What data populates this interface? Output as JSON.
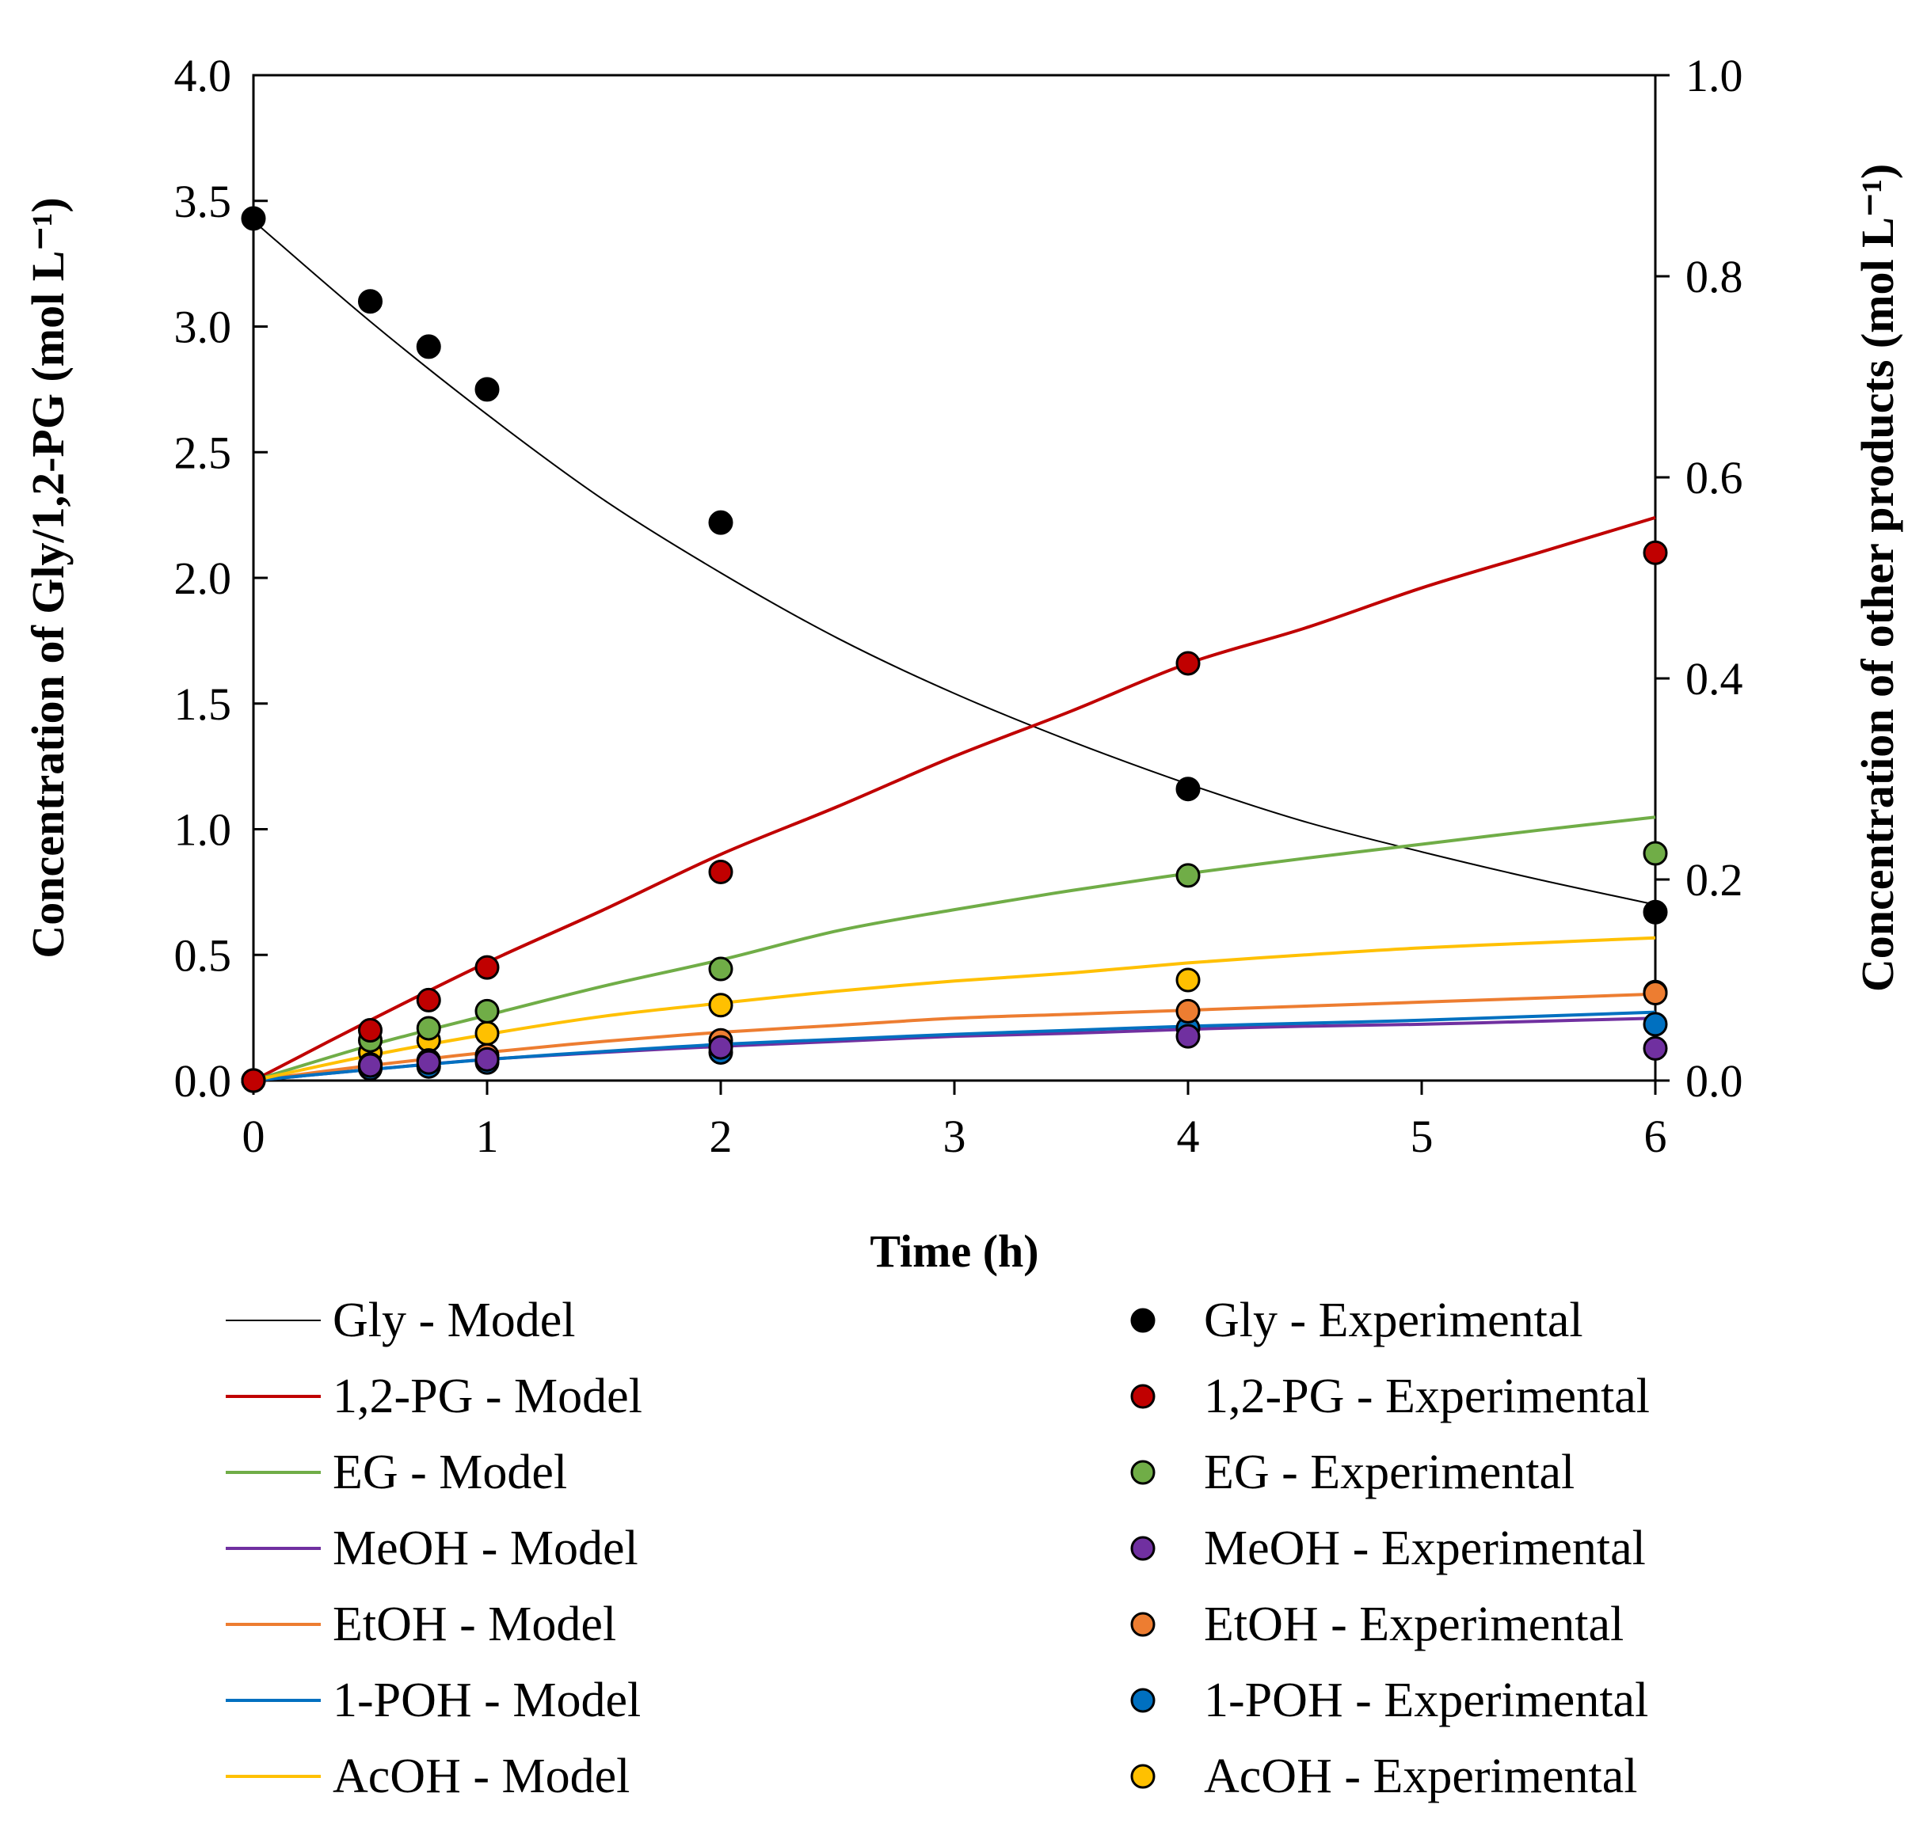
{
  "chart_data": {
    "type": "scatter",
    "title": "",
    "xlabel": "Time (h)",
    "ylabel_left": "Concentration of Gly/1,2-PG (mol L⁻¹)",
    "ylabel_right": "Concentration of other products (mol L⁻¹)",
    "xlim": [
      0,
      6
    ],
    "ylim_left": [
      0,
      4.0
    ],
    "ylim_right": [
      0,
      1.0
    ],
    "x_ticks": [
      "0",
      "1",
      "2",
      "3",
      "4",
      "5",
      "6"
    ],
    "y_left_ticks": [
      "0.0",
      "0.5",
      "1.0",
      "1.5",
      "2.0",
      "2.5",
      "3.0",
      "3.5",
      "4.0"
    ],
    "y_right_ticks": [
      "0.0",
      "0.2",
      "0.4",
      "0.6",
      "0.8",
      "1.0"
    ],
    "grid": false,
    "legend_position": "bottom",
    "series": [
      {
        "name": "Gly",
        "axis": "left",
        "color": "#000000",
        "model_width": 2,
        "model_label": "Gly - Model",
        "exp_label": "Gly - Experimental",
        "model_x": [
          0,
          0.5,
          1,
          1.5,
          2,
          2.5,
          3,
          3.5,
          4,
          4.5,
          5,
          5.5,
          6
        ],
        "model_y": [
          3.42,
          3.02,
          2.65,
          2.31,
          2.02,
          1.76,
          1.54,
          1.35,
          1.18,
          1.03,
          0.91,
          0.8,
          0.7
        ],
        "exp_x": [
          0,
          0.5,
          0.75,
          1,
          2,
          4,
          6
        ],
        "exp_y": [
          3.43,
          3.1,
          2.92,
          2.75,
          2.22,
          1.16,
          0.67
        ]
      },
      {
        "name": "1,2-PG",
        "axis": "left",
        "color": "#c00000",
        "model_width": 4,
        "model_label": "1,2-PG - Model",
        "exp_label": "1,2-PG - Experimental",
        "model_x": [
          0,
          0.5,
          1,
          1.5,
          2,
          2.5,
          3,
          3.5,
          4,
          4.5,
          5,
          5.5,
          6
        ],
        "model_y": [
          0,
          0.24,
          0.47,
          0.68,
          0.9,
          1.09,
          1.29,
          1.47,
          1.66,
          1.8,
          1.96,
          2.1,
          2.24
        ],
        "exp_x": [
          0,
          0.5,
          0.75,
          1,
          2,
          4,
          6
        ],
        "exp_y": [
          0,
          0.2,
          0.32,
          0.45,
          0.83,
          1.66,
          2.1
        ]
      },
      {
        "name": "EG",
        "axis": "right",
        "color": "#70ad47",
        "model_width": 4,
        "model_label": "EG - Model",
        "exp_label": "EG - Experimental",
        "model_x": [
          0,
          0.5,
          1,
          1.5,
          2,
          2.5,
          3,
          3.5,
          4,
          4.5,
          5,
          5.5,
          6
        ],
        "model_y": [
          0,
          0.035,
          0.065,
          0.094,
          0.12,
          0.149,
          0.17,
          0.189,
          0.206,
          0.221,
          0.235,
          0.249,
          0.262
        ],
        "exp_x": [
          0,
          0.5,
          0.75,
          1,
          2,
          4,
          6
        ],
        "exp_y": [
          0,
          0.04,
          0.052,
          0.069,
          0.111,
          0.204,
          0.226
        ]
      },
      {
        "name": "MeOH",
        "axis": "right",
        "color": "#7030a0",
        "model_width": 4,
        "model_label": "MeOH - Model",
        "exp_label": "MeOH - Experimental",
        "model_x": [
          0,
          0.5,
          1,
          1.5,
          2,
          2.5,
          3,
          3.5,
          4,
          4.5,
          5,
          5.5,
          6
        ],
        "model_y": [
          0,
          0.011,
          0.021,
          0.028,
          0.034,
          0.039,
          0.044,
          0.047,
          0.051,
          0.054,
          0.056,
          0.059,
          0.062
        ],
        "exp_x": [
          0,
          0.5,
          0.75,
          1,
          2,
          4,
          6
        ],
        "exp_y": [
          0,
          0.015,
          0.018,
          0.021,
          0.033,
          0.044,
          0.032
        ]
      },
      {
        "name": "EtOH",
        "axis": "right",
        "color": "#ed7d31",
        "model_width": 4,
        "model_label": "EtOH - Model",
        "exp_label": "EtOH - Experimental",
        "model_x": [
          0,
          0.5,
          1,
          1.5,
          2,
          2.5,
          3,
          3.5,
          4,
          4.5,
          5,
          5.5,
          6
        ],
        "model_y": [
          0,
          0.015,
          0.028,
          0.039,
          0.048,
          0.055,
          0.062,
          0.066,
          0.07,
          0.074,
          0.078,
          0.082,
          0.086
        ],
        "exp_x": [
          0,
          0.5,
          0.75,
          1,
          2,
          4,
          6
        ],
        "exp_y": [
          0,
          0.016,
          0.02,
          0.025,
          0.04,
          0.069,
          0.087
        ]
      },
      {
        "name": "1-POH",
        "axis": "right",
        "color": "#0070c0",
        "model_width": 4,
        "model_label": "1-POH - Model",
        "exp_label": "1-POH - Experimental",
        "model_x": [
          0,
          0.5,
          1,
          1.5,
          2,
          2.5,
          3,
          3.5,
          4,
          4.5,
          5,
          5.5,
          6
        ],
        "model_y": [
          0,
          0.011,
          0.021,
          0.029,
          0.036,
          0.041,
          0.046,
          0.05,
          0.054,
          0.057,
          0.06,
          0.064,
          0.068
        ],
        "exp_x": [
          0,
          0.5,
          0.75,
          1,
          2,
          4,
          6
        ],
        "exp_y": [
          0,
          0.012,
          0.014,
          0.018,
          0.028,
          0.052,
          0.056
        ]
      },
      {
        "name": "AcOH",
        "axis": "right",
        "color": "#ffc000",
        "model_width": 4,
        "model_label": "AcOH - Model",
        "exp_label": "AcOH - Experimental",
        "model_x": [
          0,
          0.5,
          1,
          1.5,
          2,
          2.5,
          3,
          3.5,
          4,
          4.5,
          5,
          5.5,
          6
        ],
        "model_y": [
          0,
          0.025,
          0.046,
          0.064,
          0.077,
          0.089,
          0.099,
          0.107,
          0.117,
          0.125,
          0.132,
          0.137,
          0.142
        ],
        "exp_x": [
          0,
          0.5,
          0.75,
          1,
          2,
          4,
          6
        ],
        "exp_y": [
          0,
          0.028,
          0.04,
          0.047,
          0.075,
          0.1,
          0.088
        ]
      }
    ]
  }
}
